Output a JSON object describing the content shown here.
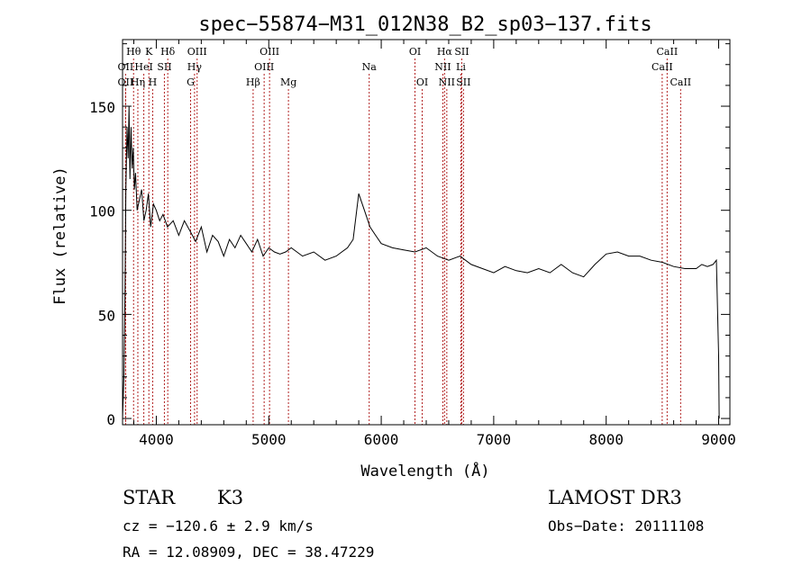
{
  "chart_data": {
    "type": "line",
    "title": "spec−55874−M31_012N38_B2_sp03−137.fits",
    "xlabel": "Wavelength (Å)",
    "ylabel": "Flux (relative)",
    "xlim": [
      3700,
      9100
    ],
    "ylim": [
      -3,
      182
    ],
    "x_ticks": [
      4000,
      5000,
      6000,
      7000,
      8000,
      9000
    ],
    "y_ticks": [
      0,
      50,
      100,
      150
    ],
    "x_tick_labels": [
      "4000",
      "5000",
      "6000",
      "7000",
      "8000",
      "9000"
    ],
    "y_tick_labels": [
      "0",
      "50",
      "100",
      "150"
    ],
    "grid": false,
    "line_color": "#000000",
    "marker_color": "#b22222",
    "series": [
      {
        "x": [
          3700,
          3712,
          3722,
          3730,
          3740,
          3750,
          3758,
          3766,
          3775,
          3785,
          3795,
          3805,
          3815,
          3830,
          3850,
          3870,
          3890,
          3910,
          3930,
          3950,
          3975,
          4000,
          4030,
          4060,
          4100,
          4150,
          4200,
          4250,
          4300,
          4350,
          4400,
          4450,
          4500,
          4550,
          4600,
          4650,
          4700,
          4750,
          4800,
          4850,
          4900,
          4950,
          5000,
          5050,
          5100,
          5150,
          5200,
          5300,
          5400,
          5500,
          5600,
          5700,
          5750,
          5800,
          5850,
          5900,
          5950,
          6000,
          6100,
          6200,
          6300,
          6400,
          6500,
          6600,
          6700,
          6800,
          6900,
          7000,
          7100,
          7200,
          7300,
          7400,
          7500,
          7600,
          7700,
          7800,
          7900,
          8000,
          8100,
          8200,
          8300,
          8400,
          8500,
          8600,
          8700,
          8800,
          8850,
          8900,
          8950,
          8980,
          9000,
          9005
        ],
        "y": [
          0,
          20,
          60,
          110,
          140,
          125,
          150,
          115,
          140,
          120,
          130,
          110,
          118,
          100,
          105,
          110,
          95,
          100,
          108,
          92,
          103,
          100,
          95,
          98,
          92,
          95,
          88,
          95,
          90,
          85,
          92,
          80,
          88,
          85,
          78,
          86,
          82,
          88,
          84,
          80,
          86,
          78,
          82,
          80,
          79,
          80,
          82,
          78,
          80,
          76,
          78,
          82,
          86,
          108,
          100,
          92,
          88,
          84,
          82,
          81,
          80,
          82,
          78,
          76,
          78,
          74,
          72,
          70,
          73,
          71,
          70,
          72,
          70,
          74,
          70,
          68,
          74,
          79,
          80,
          78,
          78,
          76,
          75,
          73,
          72,
          72,
          74,
          73,
          74,
          76,
          30,
          0
        ]
      }
    ],
    "lines": [
      {
        "name": "OII",
        "wave": 3727,
        "row": 2
      },
      {
        "name": "Hθ",
        "wave": 3798,
        "row": 0
      },
      {
        "name": "OII",
        "wave": 3727,
        "row": 1
      },
      {
        "name": "Hη",
        "wave": 3836,
        "row": 2
      },
      {
        "name": "HeI",
        "wave": 3889,
        "row": 1
      },
      {
        "name": "K",
        "wave": 3934,
        "row": 0
      },
      {
        "name": "H",
        "wave": 3968,
        "row": 2
      },
      {
        "name": "SII",
        "wave": 4072,
        "row": 1
      },
      {
        "name": "Hδ",
        "wave": 4102,
        "row": 0
      },
      {
        "name": "G",
        "wave": 4305,
        "row": 2
      },
      {
        "name": "Hγ",
        "wave": 4340,
        "row": 1
      },
      {
        "name": "OIII",
        "wave": 4363,
        "row": 0
      },
      {
        "name": "Hβ",
        "wave": 4861,
        "row": 2
      },
      {
        "name": "OIII",
        "wave": 4959,
        "row": 1
      },
      {
        "name": "OIII",
        "wave": 5007,
        "row": 0
      },
      {
        "name": "Mg",
        "wave": 5175,
        "row": 2
      },
      {
        "name": "Na",
        "wave": 5893,
        "row": 1
      },
      {
        "name": "OI",
        "wave": 6300,
        "row": 0
      },
      {
        "name": "OI",
        "wave": 6364,
        "row": 2
      },
      {
        "name": "NII",
        "wave": 6548,
        "row": 1
      },
      {
        "name": "Hα",
        "wave": 6563,
        "row": 0
      },
      {
        "name": "NII",
        "wave": 6583,
        "row": 2
      },
      {
        "name": "Li",
        "wave": 6708,
        "row": 1
      },
      {
        "name": "SII",
        "wave": 6716,
        "row": 0
      },
      {
        "name": "SII",
        "wave": 6731,
        "row": 2
      },
      {
        "name": "CaII",
        "wave": 8498,
        "row": 1
      },
      {
        "name": "CaII",
        "wave": 8542,
        "row": 0
      },
      {
        "name": "CaII",
        "wave": 8662,
        "row": 2
      }
    ]
  },
  "info": {
    "class": "STAR",
    "subclass": "K3",
    "survey": "LAMOST DR3",
    "cz": "cz = −120.6 ± 2.9 km/s",
    "obs_date": "Obs−Date: 20111108",
    "coords": "RA =  12.08909, DEC =  38.47229"
  }
}
